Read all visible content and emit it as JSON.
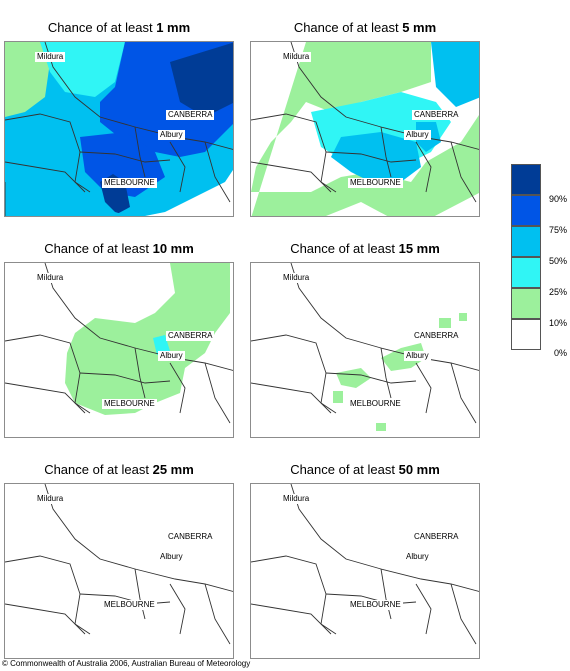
{
  "panels": [
    {
      "title_prefix": "Chance of at least ",
      "amount": "1 mm"
    },
    {
      "title_prefix": "Chance of at least ",
      "amount": "5 mm"
    },
    {
      "title_prefix": "Chance of at least ",
      "amount": "10 mm"
    },
    {
      "title_prefix": "Chance of at least ",
      "amount": "15 mm"
    },
    {
      "title_prefix": "Chance of at least ",
      "amount": "25 mm"
    },
    {
      "title_prefix": "Chance of at least ",
      "amount": "50 mm"
    }
  ],
  "places": {
    "mildura": "Mildura",
    "canberra": "CANBERRA",
    "albury": "Albury",
    "melbourne": "MELBOURNE"
  },
  "legend": {
    "labels": [
      "90%",
      "75%",
      "50%",
      "25%",
      "10%",
      "0%"
    ],
    "colors": [
      "#003c96",
      "#0055e6",
      "#00c0f0",
      "#30f5f5",
      "#9cf09c",
      "#ffffff"
    ]
  },
  "copyright": "© Commonwealth of Australia 2006, Australian Bureau of Meteorology"
}
